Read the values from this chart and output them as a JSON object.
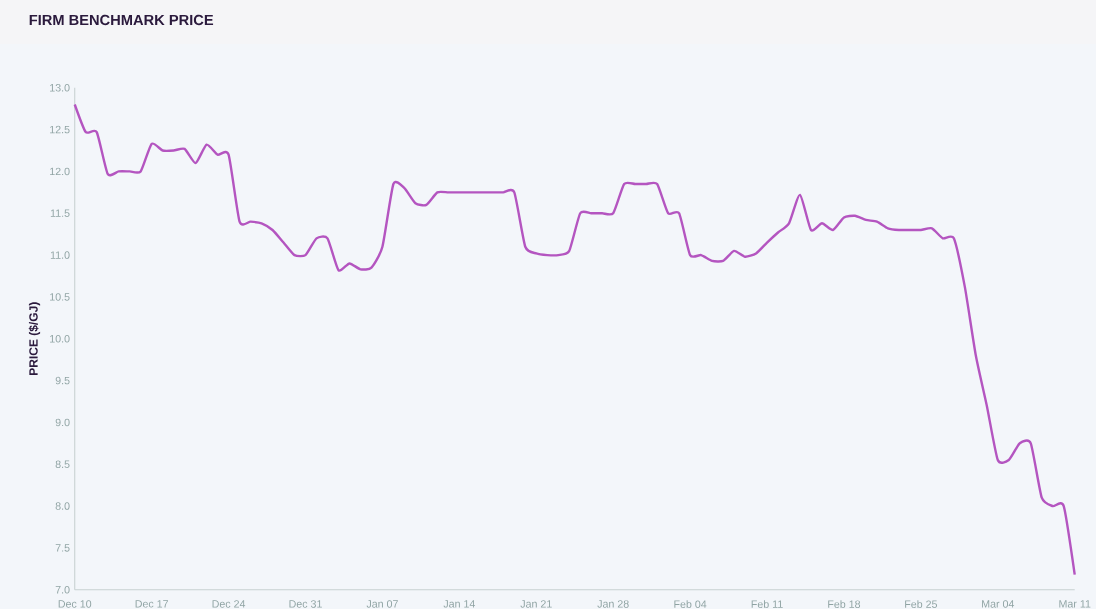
{
  "chart_data": {
    "type": "line",
    "title": "FIRM BENCHMARK PRICE",
    "ylabel": "PRICE ($/GJ)",
    "categories": [
      "Dec 10",
      null,
      null,
      null,
      null,
      null,
      null,
      "Dec 17",
      null,
      null,
      null,
      null,
      null,
      null,
      "Dec 24",
      null,
      null,
      null,
      null,
      null,
      null,
      "Dec 31",
      null,
      null,
      null,
      null,
      null,
      null,
      "Jan 07",
      null,
      null,
      null,
      null,
      null,
      null,
      "Jan 14",
      null,
      null,
      null,
      null,
      null,
      null,
      "Jan 21",
      null,
      null,
      null,
      null,
      null,
      null,
      "Jan 28",
      null,
      null,
      null,
      null,
      null,
      null,
      "Feb 04",
      null,
      null,
      null,
      null,
      null,
      null,
      "Feb 11",
      null,
      null,
      null,
      null,
      null,
      null,
      "Feb 18",
      null,
      null,
      null,
      null,
      null,
      null,
      "Feb 25",
      null,
      null,
      null,
      null,
      null,
      null,
      "Mar 04",
      null,
      null,
      null,
      null,
      null,
      null,
      "Mar 11"
    ],
    "series": [
      {
        "color": "#b455c0",
        "values": [
          12.8,
          12.47,
          12.47,
          11.97,
          12.0,
          12.0,
          12.0,
          12.33,
          12.25,
          12.25,
          12.27,
          12.1,
          12.32,
          12.2,
          12.2,
          11.4,
          11.4,
          11.38,
          11.3,
          11.15,
          11.0,
          11.0,
          11.2,
          11.2,
          10.82,
          10.9,
          10.83,
          10.85,
          11.1,
          11.85,
          11.8,
          11.62,
          11.6,
          11.75,
          11.75,
          11.75,
          11.75,
          11.75,
          11.75,
          11.75,
          11.75,
          11.1,
          11.02,
          11.0,
          11.0,
          11.05,
          11.5,
          11.5,
          11.5,
          11.5,
          11.85,
          11.85,
          11.85,
          11.85,
          11.5,
          11.5,
          11.0,
          11.0,
          10.93,
          10.93,
          11.05,
          10.98,
          11.02,
          11.15,
          11.27,
          11.38,
          11.72,
          11.3,
          11.38,
          11.3,
          11.45,
          11.47,
          11.42,
          11.4,
          11.32,
          11.3,
          11.3,
          11.3,
          11.32,
          11.2,
          11.2,
          10.62,
          9.8,
          9.2,
          8.55,
          8.55,
          8.75,
          8.75,
          8.1,
          8.0,
          8.0,
          7.18
        ]
      }
    ],
    "ylim": [
      7,
      13
    ],
    "yticks": [
      {
        "value": 7,
        "label": "7.0"
      },
      {
        "value": 7.5,
        "label": "7.5"
      },
      {
        "value": 8,
        "label": "8.0"
      },
      {
        "value": 8.5,
        "label": "8.5"
      },
      {
        "value": 9,
        "label": "9.0"
      },
      {
        "value": 9.5,
        "label": "9.5"
      },
      {
        "value": 10,
        "label": "10.0"
      },
      {
        "value": 10.5,
        "label": "10.5"
      },
      {
        "value": 11,
        "label": "11.0"
      },
      {
        "value": 11.5,
        "label": "11.5"
      },
      {
        "value": 12,
        "label": "12.0"
      },
      {
        "value": 12.5,
        "label": "12.5"
      },
      {
        "value": 13,
        "label": "13.0"
      }
    ]
  }
}
